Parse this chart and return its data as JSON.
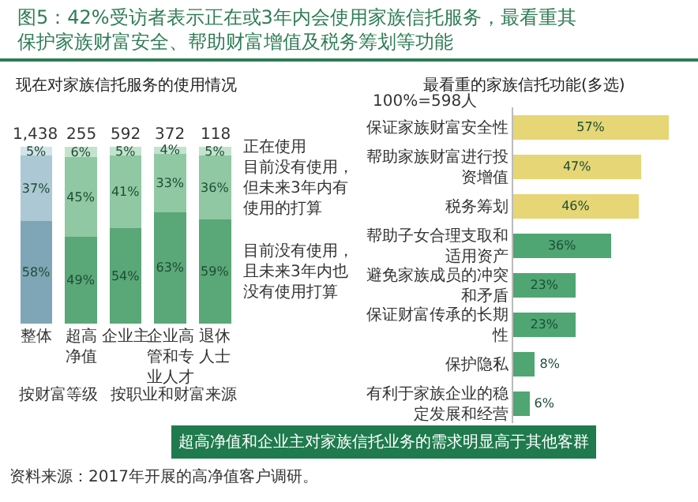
{
  "chart_data": [
    {
      "type": "other",
      "title": "图5：42%受访者表示正在或3年内会使用家族信托服务，最看重其保护家族财富安全、帮助财富增值及税务筹划等功能",
      "annotations": [
        "超高净值和企业主对家族信托业务的需求明显高于其他客群",
        "资料来源：2017年开展的高净值客户调研。"
      ]
    },
    {
      "type": "bar",
      "stacked": true,
      "title": "现在对家族信托服务的使用情况",
      "categories": [
        "整体",
        "超高净值",
        "企业主",
        "企业高管和专业人才",
        "退休人士"
      ],
      "tick_labels": "x",
      "series": [
        {
          "name": "目前没有使用，且未来3年内也没有使用打算",
          "values": [
            58,
            49,
            54,
            63,
            59
          ],
          "value_labels": [
            "58%",
            "49%",
            "54%",
            "63%",
            "59%"
          ],
          "colors": [
            "#7fa6b6",
            "#5aa778",
            "#5aa778",
            "#5aa778",
            "#5aa778"
          ]
        },
        {
          "name": "目前没有使用，但未来3年内有使用的打算",
          "values": [
            37,
            45,
            41,
            33,
            36
          ],
          "value_labels": [
            "37%",
            "45%",
            "41%",
            "33%",
            "36%"
          ],
          "colors": [
            "#abc8d4",
            "#8fc8a2",
            "#8fc8a2",
            "#8fc8a2",
            "#8fc8a2"
          ]
        },
        {
          "name": "正在使用",
          "values": [
            5,
            6,
            5,
            4,
            5
          ],
          "value_labels": [
            "5%",
            "6%",
            "5%",
            "4%",
            "5%"
          ],
          "colors": [
            "#d2e3ea",
            "#c3e3cc",
            "#c3e3cc",
            "#c3e3cc",
            "#c3e3cc"
          ]
        }
      ],
      "annotations": [
        {
          "text": "1,438",
          "x": "整体",
          "y": 100
        },
        {
          "text": "255",
          "x": "超高净值",
          "y": 100
        },
        {
          "text": "592",
          "x": "企业主",
          "y": 100
        },
        {
          "text": "372",
          "x": "企业高管和专业人才",
          "y": 100
        },
        {
          "text": "118",
          "x": "退休人士",
          "y": 100
        },
        "按财富等级",
        "按职业和财富来源"
      ]
    },
    {
      "type": "bar",
      "orientation": "horizontal",
      "title": "最看重的家族信托功能(多选)",
      "subtitle": "100%=598人",
      "tick_labels": "y",
      "categories": [
        "保证家族财富安全性",
        "帮助家族财富进行投资增值",
        "税务筹划",
        "帮助子女合理支取和适用资产",
        "避免家族成员的冲突和矛盾",
        "保证财富传承的长期性",
        "保护隐私",
        "有利于家族企业的稳定发展和经营"
      ],
      "values": [
        57,
        47,
        46,
        36,
        23,
        23,
        8,
        6
      ],
      "value_labels": [
        "57%",
        "47%",
        "46%",
        "36%",
        "23%",
        "23%",
        "8%",
        "6%"
      ],
      "colors": [
        "#e6d676",
        "#e6d676",
        "#e6d676",
        "#4fa673",
        "#4fa673",
        "#4fa673",
        "#4fa673",
        "#4fa673"
      ]
    }
  ]
}
